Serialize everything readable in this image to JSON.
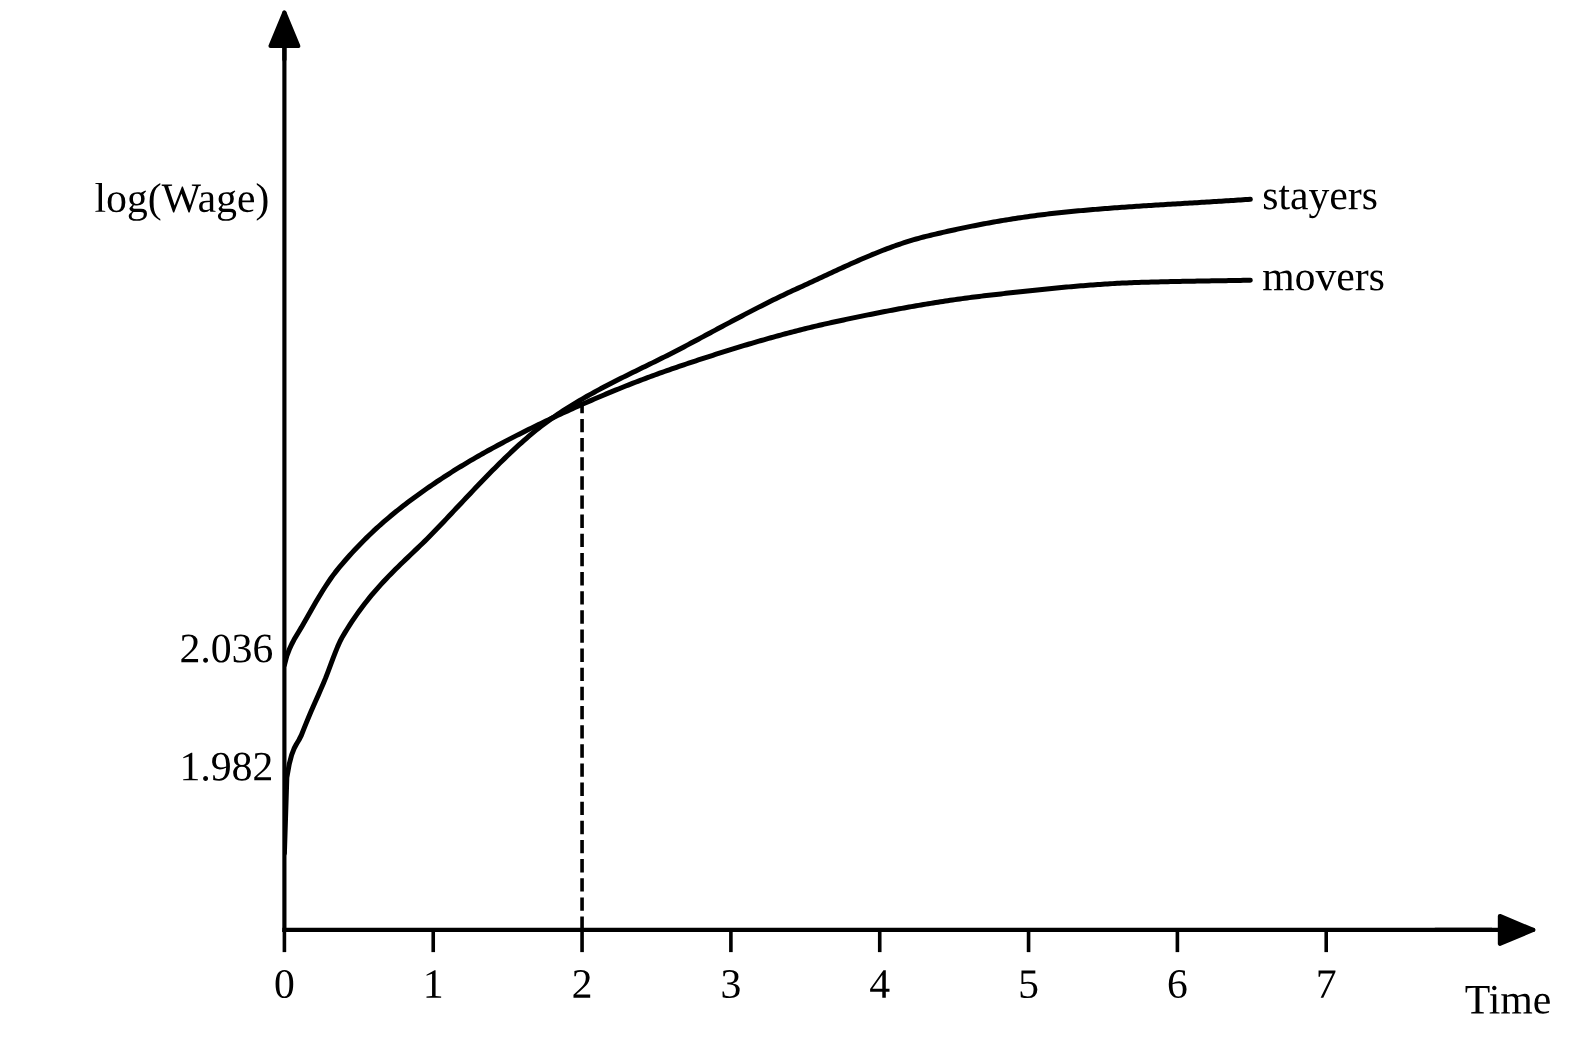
{
  "chart_data": {
    "type": "line",
    "xlabel": "Time",
    "ylabel": "log(Wage)",
    "xlim": [
      0,
      8.1
    ],
    "ylim": [
      1.907,
      2.323
    ],
    "xticks": [
      0,
      1,
      2,
      3,
      4,
      5,
      6,
      7
    ],
    "yticks": [
      1.982,
      2.036
    ],
    "series": [
      {
        "name": "stayers",
        "color": "#000000",
        "x": [
          0,
          0.015,
          0.12,
          0.27,
          0.39,
          1.02,
          1.8,
          2.67,
          3.44,
          4.31,
          5.23,
          6.49
        ],
        "values": [
          1.942,
          1.976,
          1.997,
          2.021,
          2.041,
          2.09,
          2.141,
          2.173,
          2.2,
          2.224,
          2.235,
          2.241
        ]
      },
      {
        "name": "movers",
        "color": "#000000",
        "x": [
          0,
          0.02,
          0.12,
          0.36,
          0.9,
          1.8,
          2.67,
          3.7,
          4.72,
          5.75,
          6.49
        ],
        "values": [
          2.028,
          2.033,
          2.046,
          2.072,
          2.106,
          2.141,
          2.165,
          2.185,
          2.197,
          2.203,
          2.204
        ]
      }
    ],
    "ref_lines": [
      {
        "axis": "x",
        "value": 2,
        "color": "#000000",
        "line_style": "dashed"
      }
    ],
    "marker": "none",
    "line_style": "solid",
    "grid": false
  }
}
